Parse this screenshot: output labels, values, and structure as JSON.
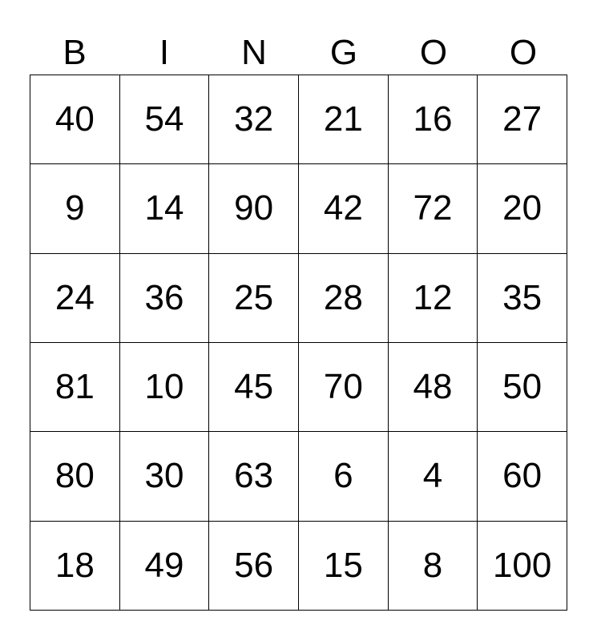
{
  "header": [
    "B",
    "I",
    "N",
    "G",
    "O",
    "O"
  ],
  "rows": [
    [
      "40",
      "54",
      "32",
      "21",
      "16",
      "27"
    ],
    [
      "9",
      "14",
      "90",
      "42",
      "72",
      "20"
    ],
    [
      "24",
      "36",
      "25",
      "28",
      "12",
      "35"
    ],
    [
      "81",
      "10",
      "45",
      "70",
      "48",
      "50"
    ],
    [
      "80",
      "30",
      "63",
      "6",
      "4",
      "60"
    ],
    [
      "18",
      "49",
      "56",
      "15",
      "8",
      "100"
    ]
  ]
}
